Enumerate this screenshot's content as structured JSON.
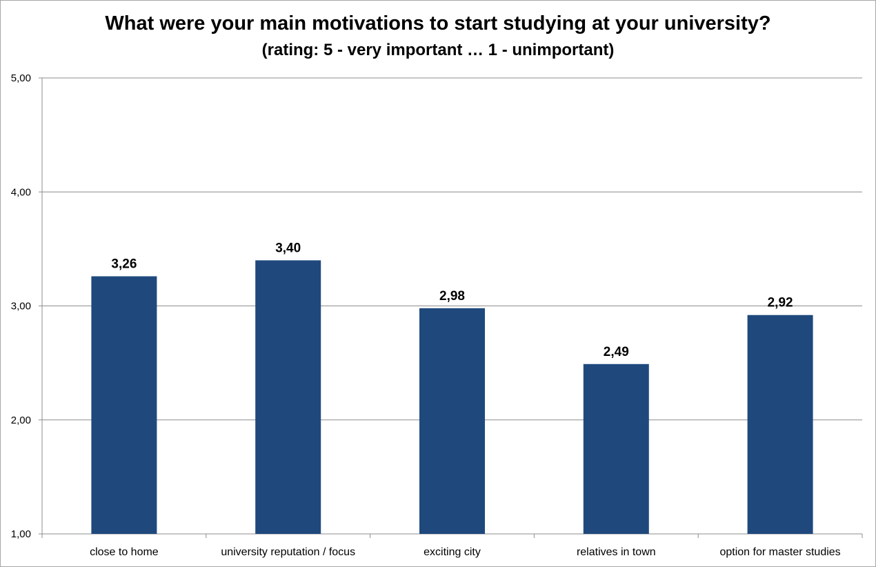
{
  "chart_data": {
    "type": "bar",
    "title": "What were your main motivations to start studying at your university?",
    "subtitle": "(rating: 5 - very important … 1 - unimportant)",
    "xlabel": "",
    "ylabel": "",
    "categories": [
      "close to home",
      "university reputation / focus",
      "exciting city",
      "relatives in town",
      "option for master studies"
    ],
    "values": [
      3.26,
      3.4,
      2.98,
      2.49,
      2.92
    ],
    "value_labels": [
      "3,26",
      "3,40",
      "2,98",
      "2,49",
      "2,92"
    ],
    "ylim": [
      1,
      5
    ],
    "yticks": [
      1,
      2,
      3,
      4,
      5
    ],
    "ytick_labels": [
      "1,00",
      "2,00",
      "3,00",
      "4,00",
      "5,00"
    ],
    "grid": true,
    "legend": "none",
    "bar_color": "#1f497d",
    "grid_color": "#8c8c8c"
  }
}
